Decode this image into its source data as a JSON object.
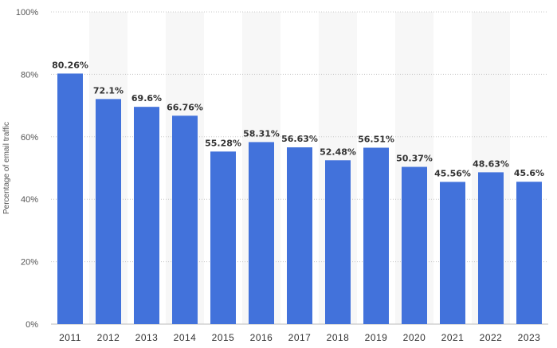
{
  "chart_data": {
    "type": "bar",
    "ylabel": "Percentage of email traffic",
    "xlabel": "",
    "ylim": [
      0,
      100
    ],
    "yticks": [
      0,
      20,
      40,
      60,
      80,
      100
    ],
    "ytick_suffix": "%",
    "grid": true,
    "categories": [
      "2011",
      "2012",
      "2013",
      "2014",
      "2015",
      "2016",
      "2017",
      "2018",
      "2019",
      "2020",
      "2021",
      "2022",
      "2023"
    ],
    "values": [
      80.26,
      72.1,
      69.6,
      66.76,
      55.28,
      58.31,
      56.63,
      52.48,
      56.51,
      50.37,
      45.56,
      48.63,
      45.6
    ],
    "data_labels": [
      "80.26%",
      "72.1%",
      "69.6%",
      "66.76%",
      "55.28%",
      "58.31%",
      "56.63%",
      "52.48%",
      "56.51%",
      "50.37%",
      "45.56%",
      "48.63%",
      "45.6%"
    ],
    "bar_color": "#4272db",
    "band_color": "#f7f7f7"
  }
}
